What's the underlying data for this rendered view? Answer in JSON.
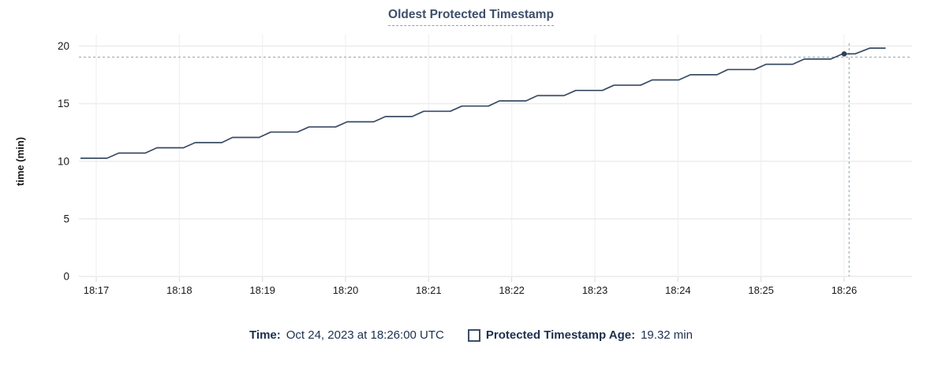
{
  "title": {
    "text": "Oldest Protected Timestamp"
  },
  "chart_data": {
    "type": "line",
    "title": "Oldest Protected Timestamp",
    "xlabel": "",
    "ylabel": "time (min)",
    "x_tick_labels": [
      "18:17",
      "18:18",
      "18:19",
      "18:20",
      "18:21",
      "18:22",
      "18:23",
      "18:24",
      "18:25",
      "18:26"
    ],
    "y_tick_values": [
      0,
      5,
      10,
      15,
      20
    ],
    "y_tick_labels": [
      "0",
      "5",
      "10",
      "15",
      "20"
    ],
    "ylim": [
      0,
      20
    ],
    "x_range_minutes_after_1817": [
      -0.21,
      9.82
    ],
    "grid": true,
    "legend_position": "bottom",
    "series": [
      {
        "name": "Protected Timestamp Age",
        "unit": "min",
        "points_t_v": [
          [
            -0.19,
            10.26
          ],
          [
            0.13,
            10.26
          ],
          [
            0.27,
            10.71
          ],
          [
            0.59,
            10.71
          ],
          [
            0.73,
            11.17
          ],
          [
            1.05,
            11.17
          ],
          [
            1.19,
            11.62
          ],
          [
            1.51,
            11.62
          ],
          [
            1.64,
            12.07
          ],
          [
            1.96,
            12.07
          ],
          [
            2.1,
            12.53
          ],
          [
            2.42,
            12.53
          ],
          [
            2.56,
            12.98
          ],
          [
            2.88,
            12.98
          ],
          [
            3.02,
            13.43
          ],
          [
            3.34,
            13.43
          ],
          [
            3.48,
            13.88
          ],
          [
            3.8,
            13.88
          ],
          [
            3.94,
            14.34
          ],
          [
            4.26,
            14.34
          ],
          [
            4.4,
            14.79
          ],
          [
            4.72,
            14.79
          ],
          [
            4.85,
            15.24
          ],
          [
            5.17,
            15.24
          ],
          [
            5.31,
            15.7
          ],
          [
            5.63,
            15.7
          ],
          [
            5.77,
            16.15
          ],
          [
            6.09,
            16.15
          ],
          [
            6.23,
            16.6
          ],
          [
            6.55,
            16.6
          ],
          [
            6.69,
            17.06
          ],
          [
            7.01,
            17.06
          ],
          [
            7.15,
            17.51
          ],
          [
            7.47,
            17.51
          ],
          [
            7.6,
            17.96
          ],
          [
            7.92,
            17.96
          ],
          [
            8.06,
            18.42
          ],
          [
            8.38,
            18.42
          ],
          [
            8.52,
            18.87
          ],
          [
            8.84,
            18.87
          ],
          [
            8.98,
            19.32
          ],
          [
            9.13,
            19.32
          ],
          [
            9.31,
            19.82
          ],
          [
            9.5,
            19.82
          ]
        ]
      }
    ],
    "hover": {
      "time_label": "18:26:00",
      "value_min": 19.32,
      "dot_t": 9.0,
      "dot_value": 19.32,
      "crosshair_t": 9.06,
      "crosshair_value": 19.04
    }
  },
  "footer": {
    "time_label": "Time:",
    "time_value": "Oct 24, 2023 at 18:26:00 UTC",
    "series_label": "Protected Timestamp Age:",
    "series_value": "19.32 min"
  },
  "colors": {
    "line": "#3a4b64",
    "dot": "#2e4057",
    "crosshair": "#a3b7c0",
    "grid_horizontal": "#ececec",
    "grid_vertical": "#f2f2f2",
    "tick_mark": "#d9d9d9",
    "tick_text": "#1a1a1a",
    "title_text": "#3d4f69",
    "title_underline": "#8b9cb8",
    "footer_text": "#1c304f",
    "background": "#ffffff"
  }
}
